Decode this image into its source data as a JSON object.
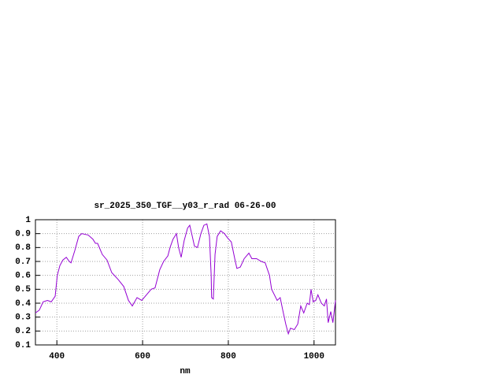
{
  "chart_data": {
    "type": "line",
    "title": "sr_2025_350_TGF__y03_r_rad 06-26-00",
    "x_label": "nm",
    "xlim": [
      350,
      1050
    ],
    "xticks": [
      400,
      600,
      800,
      1000
    ],
    "ylim": [
      0.1,
      1
    ],
    "yticks": [
      0.1,
      0.2,
      0.3,
      0.4,
      0.5,
      0.6,
      0.7,
      0.8,
      0.9,
      1
    ],
    "grid": true,
    "series": [
      {
        "color": "#9400d3",
        "x": [
          350,
          359,
          368,
          378,
          387,
          396,
          401,
          407,
          414,
          422,
          429,
          433,
          442,
          451,
          458,
          473,
          484,
          490,
          495,
          506,
          517,
          528,
          543,
          556,
          567,
          576,
          587,
          598,
          609,
          620,
          629,
          640,
          649,
          659,
          664,
          671,
          679,
          684,
          690,
          697,
          705,
          710,
          716,
          721,
          728,
          736,
          743,
          750,
          756,
          760,
          761,
          765,
          769,
          774,
          782,
          791,
          798,
          807,
          815,
          820,
          828,
          837,
          848,
          855,
          866,
          877,
          886,
          896,
          901,
          914,
          921,
          927,
          934,
          940,
          945,
          954,
          962,
          969,
          976,
          984,
          989,
          993,
          998,
          1004,
          1009,
          1017,
          1024,
          1029,
          1033,
          1039,
          1044,
          1050
        ],
        "values": [
          0.33,
          0.35,
          0.41,
          0.42,
          0.41,
          0.45,
          0.6,
          0.67,
          0.71,
          0.73,
          0.7,
          0.69,
          0.78,
          0.88,
          0.9,
          0.89,
          0.86,
          0.83,
          0.83,
          0.75,
          0.71,
          0.62,
          0.57,
          0.52,
          0.42,
          0.38,
          0.44,
          0.42,
          0.46,
          0.5,
          0.51,
          0.64,
          0.7,
          0.74,
          0.8,
          0.86,
          0.9,
          0.8,
          0.73,
          0.85,
          0.94,
          0.96,
          0.88,
          0.81,
          0.8,
          0.9,
          0.96,
          0.97,
          0.88,
          0.6,
          0.44,
          0.43,
          0.75,
          0.88,
          0.92,
          0.9,
          0.87,
          0.84,
          0.72,
          0.65,
          0.66,
          0.72,
          0.76,
          0.72,
          0.72,
          0.7,
          0.69,
          0.6,
          0.5,
          0.42,
          0.44,
          0.35,
          0.25,
          0.18,
          0.22,
          0.21,
          0.25,
          0.38,
          0.33,
          0.4,
          0.39,
          0.5,
          0.41,
          0.42,
          0.46,
          0.4,
          0.38,
          0.43,
          0.26,
          0.34,
          0.26,
          0.42
        ]
      }
    ]
  }
}
